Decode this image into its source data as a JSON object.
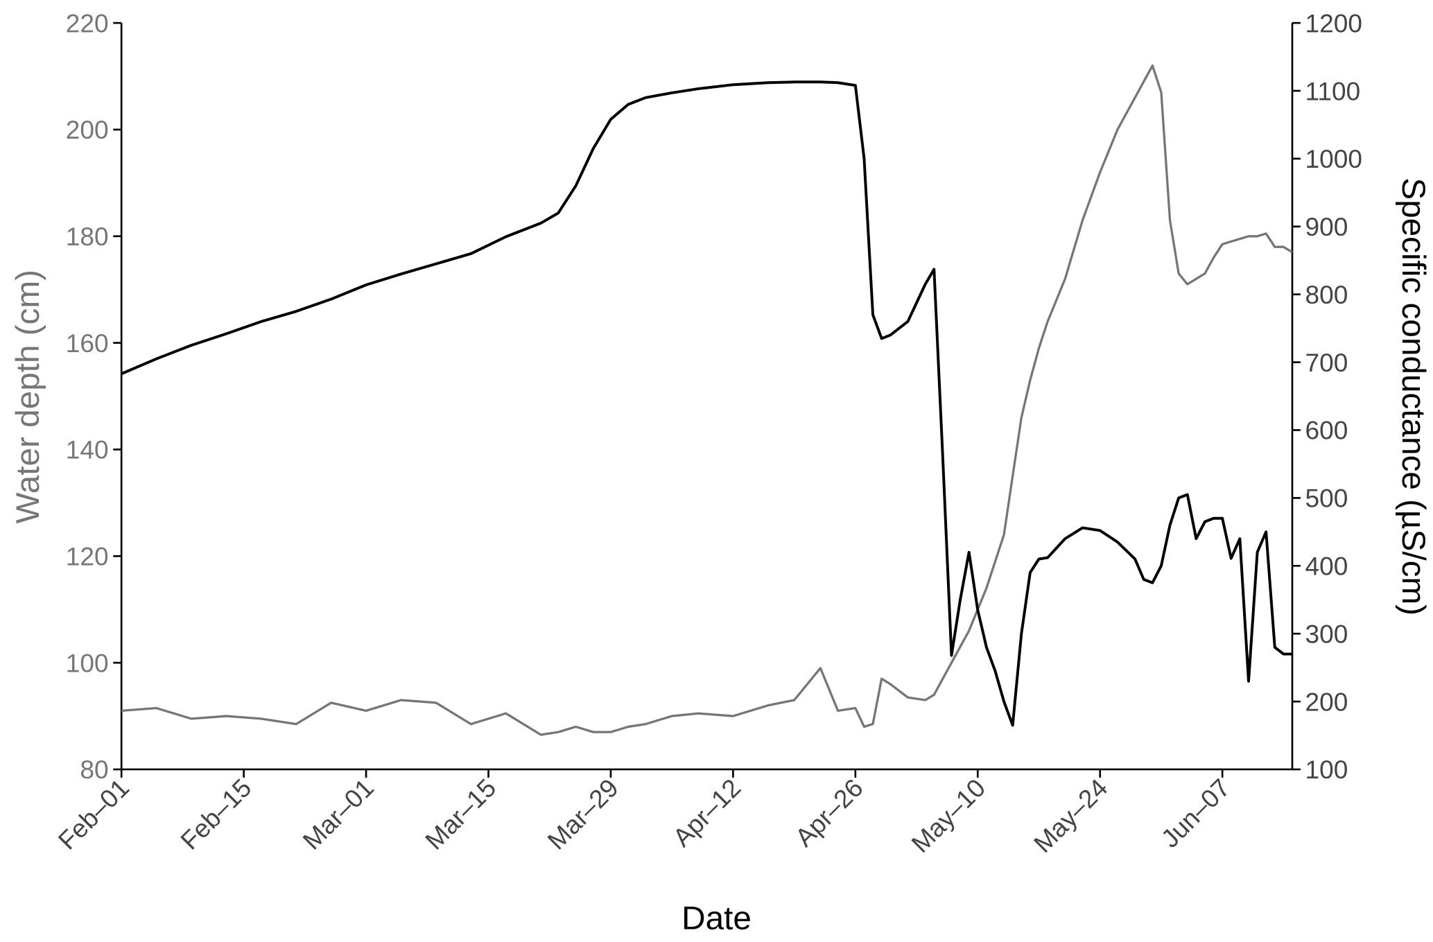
{
  "chart_data": {
    "type": "line",
    "x_label": "Date",
    "y_label": "Water depth (cm)",
    "y2_label": "Specific conductance (µS/cm)",
    "x": [
      "Feb–01",
      "Feb–05",
      "Feb–09",
      "Feb–13",
      "Feb–17",
      "Feb–21",
      "Feb–25",
      "Mar–01",
      "Mar–05",
      "Mar–09",
      "Mar–13",
      "Mar–17",
      "Mar–21",
      "Mar–23",
      "Mar–25",
      "Mar–27",
      "Mar–29",
      "Mar–31",
      "Apr–02",
      "Apr–05",
      "Apr–08",
      "Apr–12",
      "Apr–16",
      "Apr–19",
      "Apr–22",
      "Apr–24",
      "Apr–26",
      "Apr–27",
      "Apr–28",
      "Apr–29",
      "Apr–30",
      "May–02",
      "May–04",
      "May–05",
      "May–06",
      "May–07",
      "May–08",
      "May–09",
      "May–10",
      "May–11",
      "May–12",
      "May–13",
      "May–14",
      "May–15",
      "May–16",
      "May–17",
      "May–18",
      "May–20",
      "May–22",
      "May–24",
      "May–26",
      "May–28",
      "May–29",
      "May–30",
      "May–31",
      "Jun–01",
      "Jun–02",
      "Jun–03",
      "Jun–04",
      "Jun–05",
      "Jun–06",
      "Jun–07",
      "Jun–08",
      "Jun–09",
      "Jun–10",
      "Jun–11",
      "Jun–12",
      "Jun–13",
      "Jun–14",
      "Jun–15"
    ],
    "series": [
      {
        "name": "Water depth (cm)",
        "color": "#767676",
        "axis": "y",
        "values": [
          91,
          91.5,
          89.5,
          90,
          89.5,
          88.5,
          92.5,
          91,
          93,
          92.5,
          88.5,
          90.5,
          86.5,
          87,
          88,
          87,
          87,
          88,
          88.5,
          90,
          90.5,
          90,
          92,
          93,
          99,
          91,
          91.5,
          88,
          88.5,
          97,
          96,
          93.5,
          93,
          94,
          97,
          100,
          103,
          106,
          110,
          114,
          119,
          124,
          135,
          146,
          153,
          159,
          164,
          172,
          183,
          192,
          200,
          206,
          209,
          212,
          207,
          183,
          173,
          171,
          172,
          173,
          176,
          178.5,
          179,
          179.5,
          180,
          180,
          180.5,
          178,
          178,
          177
        ]
      },
      {
        "name": "Specific conductance (µS/cm)",
        "color": "#000000",
        "axis": "y2",
        "values": [
          683,
          705,
          725,
          742,
          760,
          775,
          793,
          814,
          830,
          845,
          860,
          885,
          905,
          920,
          960,
          1015,
          1058,
          1080,
          1090,
          1097,
          1103,
          1109,
          1112,
          1113,
          1113,
          1112,
          1108,
          1000,
          770,
          735,
          740,
          760,
          815,
          837,
          560,
          268,
          350,
          420,
          335,
          280,
          245,
          200,
          165,
          300,
          390,
          410,
          412,
          440,
          456,
          452,
          435,
          410,
          380,
          375,
          400,
          460,
          500,
          505,
          440,
          465,
          470,
          470,
          411,
          440,
          230,
          420,
          450,
          280,
          270,
          270
        ]
      }
    ],
    "xlim": [
      "Feb–01",
      "Jun–15"
    ],
    "xticks": [
      "Feb–01",
      "Feb–15",
      "Mar–01",
      "Mar–15",
      "Mar–29",
      "Apr–12",
      "Apr–26",
      "May–10",
      "May–24",
      "Jun–07"
    ],
    "ylim": [
      80,
      220
    ],
    "yticks": [
      80,
      100,
      120,
      140,
      160,
      180,
      200,
      220
    ],
    "y2lim": [
      100,
      1200
    ],
    "y2ticks": [
      100,
      200,
      300,
      400,
      500,
      600,
      700,
      800,
      900,
      1000,
      1100,
      1200
    ],
    "grid": false
  }
}
